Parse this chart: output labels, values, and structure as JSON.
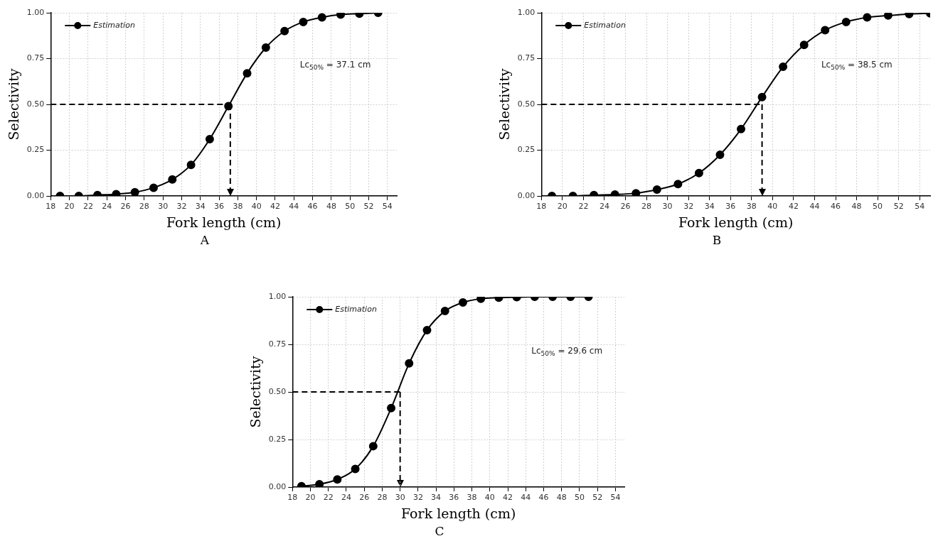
{
  "chart_data": [
    {
      "type": "line",
      "xlabel": "Fork length (cm)",
      "ylabel": "Selectivity",
      "xlim": [
        18,
        55
      ],
      "xticks": [
        18,
        20,
        22,
        24,
        26,
        28,
        30,
        32,
        34,
        36,
        38,
        40,
        42,
        44,
        46,
        48,
        50,
        52,
        54
      ],
      "ylim": [
        0,
        1
      ],
      "yticks": [
        {
          "value": 0,
          "label": "0.00"
        },
        {
          "value": 0.25,
          "label": "0.25"
        },
        {
          "value": 0.5,
          "label": "0.50"
        },
        {
          "value": 0.75,
          "label": "0.75"
        },
        {
          "value": 1,
          "label": "1.00"
        }
      ],
      "grid": true,
      "legend": "top left",
      "marker": "circle",
      "x": [
        19,
        21,
        23,
        25,
        27,
        29,
        31,
        33,
        35,
        37,
        39,
        41,
        43,
        45,
        47,
        49,
        51,
        53
      ],
      "series": [
        {
          "name": "Estimation",
          "color": "#000000",
          "values": [
            0,
            0,
            0.005,
            0.01,
            0.02,
            0.045,
            0.09,
            0.17,
            0.31,
            0.49,
            0.67,
            0.81,
            0.9,
            0.95,
            0.975,
            0.99,
            0.995,
            1
          ]
        }
      ],
      "ref_lines": [
        {
          "axis": "y",
          "value": 0.5,
          "line_style": "dashed"
        },
        {
          "axis": "x",
          "value": 37.2,
          "line_style": "dashed"
        }
      ],
      "annotations": [
        "Lc$_{50%}$ = 37.1 cm",
        "A"
      ]
    },
    {
      "type": "line",
      "xlabel": "Fork length (cm)",
      "ylabel": "Selectivity",
      "xlim": [
        18,
        55
      ],
      "xticks": [
        18,
        20,
        22,
        24,
        26,
        28,
        30,
        32,
        34,
        36,
        38,
        40,
        42,
        44,
        46,
        48,
        50,
        52,
        54
      ],
      "ylim": [
        0,
        1
      ],
      "yticks": [
        {
          "value": 0,
          "label": "0.00"
        },
        {
          "value": 0.25,
          "label": "0.25"
        },
        {
          "value": 0.5,
          "label": "0.50"
        },
        {
          "value": 0.75,
          "label": "0.75"
        },
        {
          "value": 1,
          "label": "1.00"
        }
      ],
      "grid": true,
      "legend": "top left",
      "marker": "circle",
      "x": [
        19,
        21,
        23,
        25,
        27,
        29,
        31,
        33,
        35,
        37,
        39,
        41,
        43,
        45,
        47,
        49,
        51,
        53,
        55
      ],
      "series": [
        {
          "name": "Estimation",
          "color": "#000000",
          "values": [
            0,
            0,
            0.005,
            0.008,
            0.015,
            0.035,
            0.065,
            0.125,
            0.225,
            0.365,
            0.54,
            0.705,
            0.825,
            0.905,
            0.95,
            0.975,
            0.985,
            0.993,
            0.997
          ]
        }
      ],
      "ref_lines": [
        {
          "axis": "y",
          "value": 0.5,
          "line_style": "dashed"
        },
        {
          "axis": "x",
          "value": 39,
          "line_style": "dashed"
        }
      ],
      "annotations": [
        "Lc$_{50%}$ = 38.5 cm",
        "B"
      ]
    },
    {
      "type": "line",
      "xlabel": "Fork length (cm)",
      "ylabel": "Selectivity",
      "xlim": [
        18,
        55
      ],
      "xticks": [
        18,
        20,
        22,
        24,
        26,
        28,
        30,
        32,
        34,
        36,
        38,
        40,
        42,
        44,
        46,
        48,
        50,
        52,
        54
      ],
      "ylim": [
        0,
        1
      ],
      "yticks": [
        {
          "value": 0,
          "label": "0.00"
        },
        {
          "value": 0.25,
          "label": "0.25"
        },
        {
          "value": 0.5,
          "label": "0.50"
        },
        {
          "value": 0.75,
          "label": "0.75"
        },
        {
          "value": 1,
          "label": "1.00"
        }
      ],
      "grid": true,
      "legend": "top left",
      "marker": "circle",
      "x": [
        19,
        21,
        23,
        25,
        27,
        29,
        31,
        33,
        35,
        37,
        39,
        41,
        43,
        45,
        47,
        49,
        51
      ],
      "series": [
        {
          "name": "Estimation",
          "color": "#000000",
          "values": [
            0.005,
            0.015,
            0.04,
            0.095,
            0.215,
            0.415,
            0.65,
            0.825,
            0.925,
            0.97,
            0.99,
            0.995,
            0.998,
            1,
            1,
            1,
            1
          ]
        }
      ],
      "ref_lines": [
        {
          "axis": "y",
          "value": 0.5,
          "line_style": "dashed"
        },
        {
          "axis": "x",
          "value": 30,
          "line_style": "dashed"
        }
      ],
      "annotations": [
        "Lc$_{50%}$ = 29.6 cm",
        "C"
      ]
    }
  ]
}
